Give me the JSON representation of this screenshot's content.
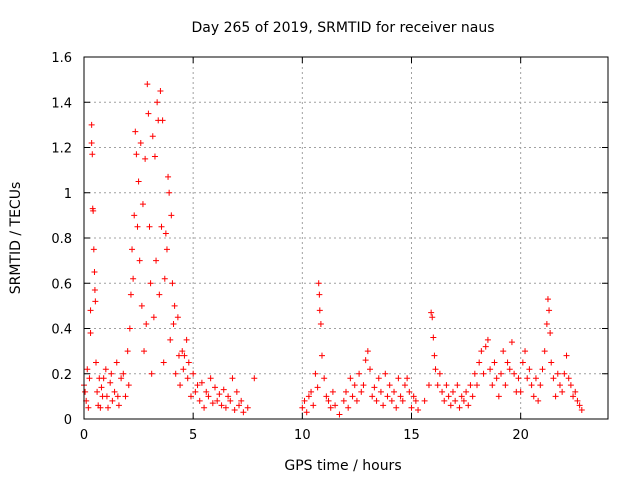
{
  "chart_data": {
    "type": "scatter",
    "title": "Day 265 of 2019, SRMTID for receiver naus",
    "xlabel": "GPS time / hours",
    "ylabel": "SRMTID / TECUs",
    "xlim": [
      0,
      24
    ],
    "ylim": [
      0,
      1.6
    ],
    "grid": true,
    "marker": "+",
    "x_ticks": [
      0,
      5,
      10,
      15,
      20
    ],
    "x_tick_labels": [
      "0",
      "5",
      "10",
      "15",
      "20"
    ],
    "y_ticks": [
      0,
      0.2,
      0.4,
      0.6,
      0.8,
      1,
      1.2,
      1.4,
      1.6
    ],
    "y_tick_labels": [
      "0",
      "0.2",
      "0.4",
      "0.6",
      "0.8",
      "1",
      "1.2",
      "1.4",
      "1.6"
    ],
    "colors": {
      "series": "#ff0000",
      "grid": "#a0a0a0",
      "axis": "#000000"
    },
    "series": [
      {
        "name": "SRMTID",
        "points": [
          [
            0.0,
            0.15
          ],
          [
            0.05,
            0.12
          ],
          [
            0.1,
            0.08
          ],
          [
            0.15,
            0.22
          ],
          [
            0.2,
            0.05
          ],
          [
            0.25,
            0.18
          ],
          [
            0.3,
            0.48
          ],
          [
            0.3,
            0.38
          ],
          [
            0.35,
            1.3
          ],
          [
            0.35,
            1.22
          ],
          [
            0.38,
            1.17
          ],
          [
            0.4,
            0.93
          ],
          [
            0.42,
            0.92
          ],
          [
            0.45,
            0.75
          ],
          [
            0.48,
            0.65
          ],
          [
            0.5,
            0.57
          ],
          [
            0.52,
            0.52
          ],
          [
            0.55,
            0.25
          ],
          [
            0.6,
            0.12
          ],
          [
            0.65,
            0.06
          ],
          [
            0.7,
            0.18
          ],
          [
            0.75,
            0.05
          ],
          [
            0.8,
            0.14
          ],
          [
            0.85,
            0.1
          ],
          [
            0.9,
            0.18
          ],
          [
            1.0,
            0.22
          ],
          [
            1.05,
            0.1
          ],
          [
            1.1,
            0.05
          ],
          [
            1.2,
            0.16
          ],
          [
            1.25,
            0.2
          ],
          [
            1.3,
            0.08
          ],
          [
            1.4,
            0.12
          ],
          [
            1.5,
            0.25
          ],
          [
            1.55,
            0.1
          ],
          [
            1.6,
            0.06
          ],
          [
            1.7,
            0.18
          ],
          [
            1.8,
            0.2
          ],
          [
            1.9,
            0.1
          ],
          [
            2.0,
            0.3
          ],
          [
            2.05,
            0.15
          ],
          [
            2.1,
            0.4
          ],
          [
            2.15,
            0.55
          ],
          [
            2.2,
            0.75
          ],
          [
            2.25,
            0.62
          ],
          [
            2.3,
            0.9
          ],
          [
            2.35,
            1.27
          ],
          [
            2.4,
            1.17
          ],
          [
            2.45,
            0.85
          ],
          [
            2.5,
            1.05
          ],
          [
            2.55,
            0.7
          ],
          [
            2.6,
            1.22
          ],
          [
            2.65,
            0.5
          ],
          [
            2.7,
            0.95
          ],
          [
            2.75,
            0.3
          ],
          [
            2.8,
            1.15
          ],
          [
            2.85,
            0.42
          ],
          [
            2.9,
            1.48
          ],
          [
            2.95,
            1.35
          ],
          [
            3.0,
            0.85
          ],
          [
            3.05,
            0.6
          ],
          [
            3.1,
            0.2
          ],
          [
            3.15,
            1.25
          ],
          [
            3.2,
            0.45
          ],
          [
            3.25,
            1.16
          ],
          [
            3.3,
            0.7
          ],
          [
            3.35,
            1.4
          ],
          [
            3.4,
            1.32
          ],
          [
            3.45,
            0.55
          ],
          [
            3.5,
            1.45
          ],
          [
            3.55,
            0.85
          ],
          [
            3.6,
            1.32
          ],
          [
            3.65,
            0.25
          ],
          [
            3.7,
            0.62
          ],
          [
            3.75,
            0.82
          ],
          [
            3.8,
            0.75
          ],
          [
            3.85,
            1.07
          ],
          [
            3.9,
            1.0
          ],
          [
            3.95,
            0.35
          ],
          [
            4.0,
            0.9
          ],
          [
            4.05,
            0.6
          ],
          [
            4.1,
            0.42
          ],
          [
            4.15,
            0.5
          ],
          [
            4.2,
            0.2
          ],
          [
            4.3,
            0.45
          ],
          [
            4.35,
            0.28
          ],
          [
            4.4,
            0.15
          ],
          [
            4.5,
            0.3
          ],
          [
            4.55,
            0.22
          ],
          [
            4.6,
            0.28
          ],
          [
            4.7,
            0.35
          ],
          [
            4.75,
            0.18
          ],
          [
            4.8,
            0.25
          ],
          [
            4.9,
            0.1
          ],
          [
            5.0,
            0.2
          ],
          [
            5.1,
            0.12
          ],
          [
            5.2,
            0.15
          ],
          [
            5.3,
            0.08
          ],
          [
            5.4,
            0.16
          ],
          [
            5.5,
            0.05
          ],
          [
            5.6,
            0.12
          ],
          [
            5.7,
            0.1
          ],
          [
            5.8,
            0.18
          ],
          [
            5.9,
            0.07
          ],
          [
            6.0,
            0.14
          ],
          [
            6.1,
            0.08
          ],
          [
            6.2,
            0.11
          ],
          [
            6.3,
            0.06
          ],
          [
            6.4,
            0.13
          ],
          [
            6.5,
            0.05
          ],
          [
            6.6,
            0.1
          ],
          [
            6.7,
            0.08
          ],
          [
            6.8,
            0.18
          ],
          [
            6.9,
            0.04
          ],
          [
            7.0,
            0.12
          ],
          [
            7.1,
            0.06
          ],
          [
            7.2,
            0.08
          ],
          [
            7.3,
            0.03
          ],
          [
            7.5,
            0.05
          ],
          [
            7.8,
            0.18
          ],
          [
            10.0,
            0.05
          ],
          [
            10.1,
            0.08
          ],
          [
            10.2,
            0.03
          ],
          [
            10.3,
            0.1
          ],
          [
            10.4,
            0.12
          ],
          [
            10.5,
            0.06
          ],
          [
            10.6,
            0.2
          ],
          [
            10.7,
            0.14
          ],
          [
            10.75,
            0.6
          ],
          [
            10.78,
            0.55
          ],
          [
            10.8,
            0.48
          ],
          [
            10.85,
            0.42
          ],
          [
            10.9,
            0.28
          ],
          [
            11.0,
            0.18
          ],
          [
            11.1,
            0.1
          ],
          [
            11.2,
            0.08
          ],
          [
            11.3,
            0.05
          ],
          [
            11.4,
            0.12
          ],
          [
            11.5,
            0.06
          ],
          [
            11.7,
            0.02
          ],
          [
            11.9,
            0.08
          ],
          [
            12.0,
            0.12
          ],
          [
            12.1,
            0.05
          ],
          [
            12.2,
            0.18
          ],
          [
            12.3,
            0.1
          ],
          [
            12.4,
            0.15
          ],
          [
            12.5,
            0.08
          ],
          [
            12.6,
            0.2
          ],
          [
            12.7,
            0.12
          ],
          [
            12.8,
            0.15
          ],
          [
            12.9,
            0.26
          ],
          [
            13.0,
            0.3
          ],
          [
            13.1,
            0.22
          ],
          [
            13.2,
            0.1
          ],
          [
            13.3,
            0.14
          ],
          [
            13.4,
            0.08
          ],
          [
            13.5,
            0.18
          ],
          [
            13.6,
            0.12
          ],
          [
            13.7,
            0.06
          ],
          [
            13.8,
            0.2
          ],
          [
            13.9,
            0.1
          ],
          [
            14.0,
            0.15
          ],
          [
            14.1,
            0.08
          ],
          [
            14.2,
            0.12
          ],
          [
            14.3,
            0.05
          ],
          [
            14.4,
            0.18
          ],
          [
            14.5,
            0.1
          ],
          [
            14.6,
            0.08
          ],
          [
            14.7,
            0.15
          ],
          [
            14.8,
            0.18
          ],
          [
            14.9,
            0.12
          ],
          [
            15.0,
            0.05
          ],
          [
            15.1,
            0.1
          ],
          [
            15.2,
            0.08
          ],
          [
            15.3,
            0.04
          ],
          [
            15.6,
            0.08
          ],
          [
            15.8,
            0.15
          ],
          [
            15.9,
            0.47
          ],
          [
            15.95,
            0.45
          ],
          [
            16.0,
            0.36
          ],
          [
            16.05,
            0.28
          ],
          [
            16.1,
            0.22
          ],
          [
            16.2,
            0.15
          ],
          [
            16.3,
            0.2
          ],
          [
            16.4,
            0.12
          ],
          [
            16.5,
            0.08
          ],
          [
            16.6,
            0.15
          ],
          [
            16.7,
            0.1
          ],
          [
            16.8,
            0.06
          ],
          [
            16.9,
            0.12
          ],
          [
            17.0,
            0.08
          ],
          [
            17.1,
            0.15
          ],
          [
            17.2,
            0.05
          ],
          [
            17.3,
            0.1
          ],
          [
            17.4,
            0.08
          ],
          [
            17.5,
            0.12
          ],
          [
            17.6,
            0.06
          ],
          [
            17.7,
            0.15
          ],
          [
            17.8,
            0.1
          ],
          [
            17.9,
            0.2
          ],
          [
            18.0,
            0.15
          ],
          [
            18.1,
            0.25
          ],
          [
            18.2,
            0.3
          ],
          [
            18.3,
            0.2
          ],
          [
            18.4,
            0.32
          ],
          [
            18.5,
            0.35
          ],
          [
            18.6,
            0.22
          ],
          [
            18.7,
            0.15
          ],
          [
            18.8,
            0.25
          ],
          [
            18.9,
            0.18
          ],
          [
            19.0,
            0.1
          ],
          [
            19.1,
            0.2
          ],
          [
            19.2,
            0.3
          ],
          [
            19.3,
            0.15
          ],
          [
            19.4,
            0.25
          ],
          [
            19.5,
            0.22
          ],
          [
            19.6,
            0.34
          ],
          [
            19.7,
            0.2
          ],
          [
            19.8,
            0.12
          ],
          [
            19.9,
            0.18
          ],
          [
            20.0,
            0.12
          ],
          [
            20.1,
            0.25
          ],
          [
            20.2,
            0.3
          ],
          [
            20.3,
            0.18
          ],
          [
            20.4,
            0.22
          ],
          [
            20.5,
            0.15
          ],
          [
            20.6,
            0.1
          ],
          [
            20.7,
            0.18
          ],
          [
            20.8,
            0.08
          ],
          [
            20.9,
            0.15
          ],
          [
            21.0,
            0.22
          ],
          [
            21.1,
            0.3
          ],
          [
            21.2,
            0.42
          ],
          [
            21.25,
            0.53
          ],
          [
            21.3,
            0.48
          ],
          [
            21.35,
            0.38
          ],
          [
            21.4,
            0.25
          ],
          [
            21.5,
            0.18
          ],
          [
            21.6,
            0.1
          ],
          [
            21.7,
            0.2
          ],
          [
            21.8,
            0.15
          ],
          [
            21.9,
            0.12
          ],
          [
            22.0,
            0.2
          ],
          [
            22.1,
            0.28
          ],
          [
            22.2,
            0.18
          ],
          [
            22.3,
            0.15
          ],
          [
            22.4,
            0.1
          ],
          [
            22.5,
            0.12
          ],
          [
            22.6,
            0.08
          ],
          [
            22.7,
            0.06
          ],
          [
            22.8,
            0.04
          ]
        ]
      }
    ]
  }
}
